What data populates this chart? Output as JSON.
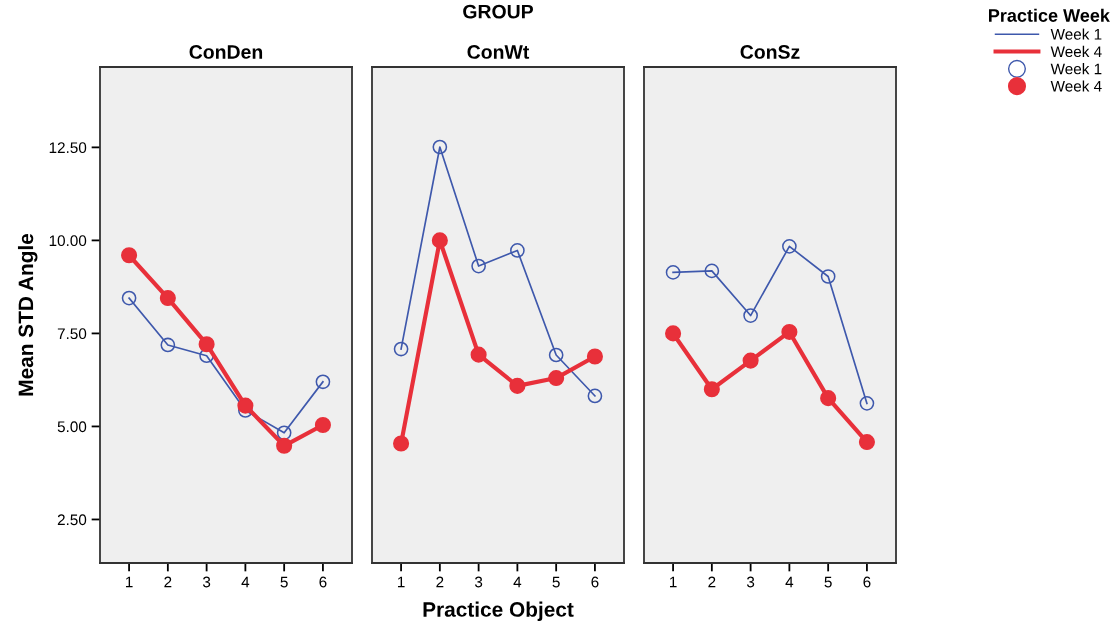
{
  "chart_data": [
    {
      "type": "line",
      "title": "ConDen",
      "ylabel": "Mean STD Angle",
      "categories": [
        "1",
        "2",
        "3",
        "4",
        "5",
        "6"
      ],
      "ylim": [
        1.33,
        14.66
      ],
      "yticks": [
        {
          "value": 2.5,
          "label": "2.50"
        },
        {
          "value": 5,
          "label": "5.00"
        },
        {
          "value": 7.5,
          "label": "7.50"
        },
        {
          "value": 10,
          "label": "10.00"
        },
        {
          "value": 12.5,
          "label": "12.50"
        }
      ],
      "marker": "circle",
      "grid": false,
      "series": [
        {
          "color": "#3e58ac",
          "values": [
            8.45,
            7.19,
            6.9,
            5.43,
            4.83,
            6.2
          ]
        },
        {
          "color": "#e8303a",
          "values": [
            9.6,
            8.45,
            7.21,
            5.56,
            4.48,
            5.04
          ]
        }
      ]
    },
    {
      "type": "line",
      "title": "ConWt",
      "xlabel": "Practice Object",
      "annotations": [
        "GROUP"
      ],
      "categories": [
        "1",
        "2",
        "3",
        "4",
        "5",
        "6"
      ],
      "ylim": [
        1.33,
        14.66
      ],
      "tick_labels": "x",
      "marker": "circle",
      "grid": false,
      "series": [
        {
          "color": "#3e58ac",
          "values": [
            7.08,
            12.51,
            9.31,
            9.73,
            6.92,
            5.82
          ]
        },
        {
          "color": "#e8303a",
          "values": [
            4.54,
            10.0,
            6.93,
            6.09,
            6.3,
            6.88
          ]
        }
      ]
    },
    {
      "type": "line",
      "title": "ConSz",
      "legend_title": "Practice Week",
      "categories": [
        "1",
        "2",
        "3",
        "4",
        "5",
        "6"
      ],
      "ylim": [
        1.33,
        14.66
      ],
      "tick_labels": "x",
      "marker": "circle",
      "grid": false,
      "legend": "top right",
      "series": [
        {
          "name": "Week 1",
          "color": "#3e58ac",
          "values": [
            9.14,
            9.18,
            7.98,
            9.84,
            9.03,
            5.62
          ]
        },
        {
          "name": "Week 4",
          "color": "#e8303a",
          "values": [
            7.5,
            6.0,
            6.77,
            7.54,
            5.76,
            4.58
          ]
        }
      ]
    }
  ]
}
